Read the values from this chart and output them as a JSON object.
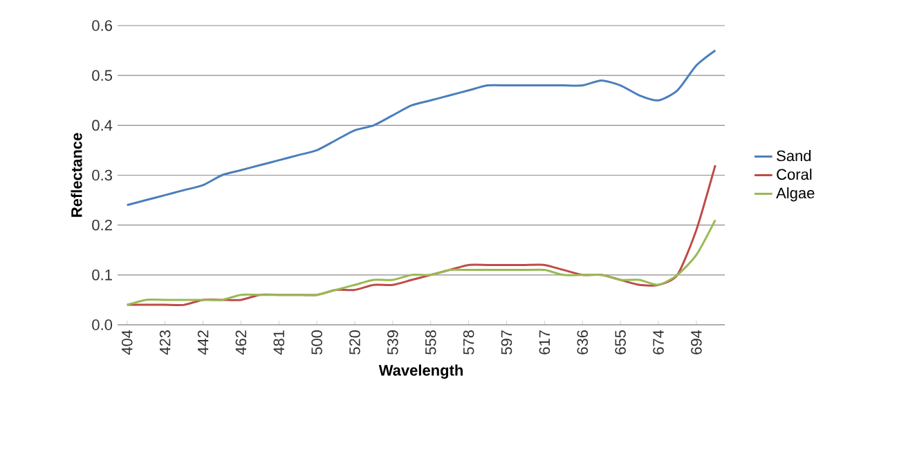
{
  "chart_data": {
    "type": "line",
    "xlabel": "Wavelength",
    "ylabel": "Reflectance",
    "categories": [
      "404",
      null,
      "423",
      null,
      "442",
      null,
      "462",
      null,
      "481",
      null,
      "500",
      null,
      "520",
      null,
      "539",
      null,
      "558",
      null,
      "578",
      null,
      "597",
      null,
      "617",
      null,
      "636",
      null,
      "655",
      null,
      "674",
      null,
      "694",
      null
    ],
    "series": [
      {
        "name": "Sand",
        "color": "#4a7ebb",
        "values": [
          0.24,
          0.25,
          0.26,
          0.27,
          0.28,
          0.3,
          0.31,
          0.32,
          0.33,
          0.34,
          0.35,
          0.37,
          0.39,
          0.4,
          0.42,
          0.44,
          0.45,
          0.46,
          0.47,
          0.48,
          0.48,
          0.48,
          0.48,
          0.48,
          0.48,
          0.49,
          0.48,
          0.46,
          0.45,
          0.47,
          0.52,
          0.55
        ]
      },
      {
        "name": "Coral",
        "color": "#be4b48",
        "values": [
          0.04,
          0.04,
          0.04,
          0.04,
          0.05,
          0.05,
          0.05,
          0.06,
          0.06,
          0.06,
          0.06,
          0.07,
          0.07,
          0.08,
          0.08,
          0.09,
          0.1,
          0.11,
          0.12,
          0.12,
          0.12,
          0.12,
          0.12,
          0.11,
          0.1,
          0.1,
          0.09,
          0.08,
          0.08,
          0.1,
          0.19,
          0.32
        ]
      },
      {
        "name": "Algae",
        "color": "#98b954",
        "values": [
          0.04,
          0.05,
          0.05,
          0.05,
          0.05,
          0.05,
          0.06,
          0.06,
          0.06,
          0.06,
          0.06,
          0.07,
          0.08,
          0.09,
          0.09,
          0.1,
          0.1,
          0.11,
          0.11,
          0.11,
          0.11,
          0.11,
          0.11,
          0.1,
          0.1,
          0.1,
          0.09,
          0.09,
          0.08,
          0.1,
          0.14,
          0.21
        ]
      }
    ],
    "ylim": [
      0,
      0.6
    ],
    "yticks": [
      {
        "value": 0,
        "label": "0.0"
      },
      0.1,
      0.2,
      0.3,
      0.4,
      0.5,
      0.6
    ],
    "grid": "y",
    "legend": "right",
    "marker": "none",
    "line_style": "solid"
  }
}
